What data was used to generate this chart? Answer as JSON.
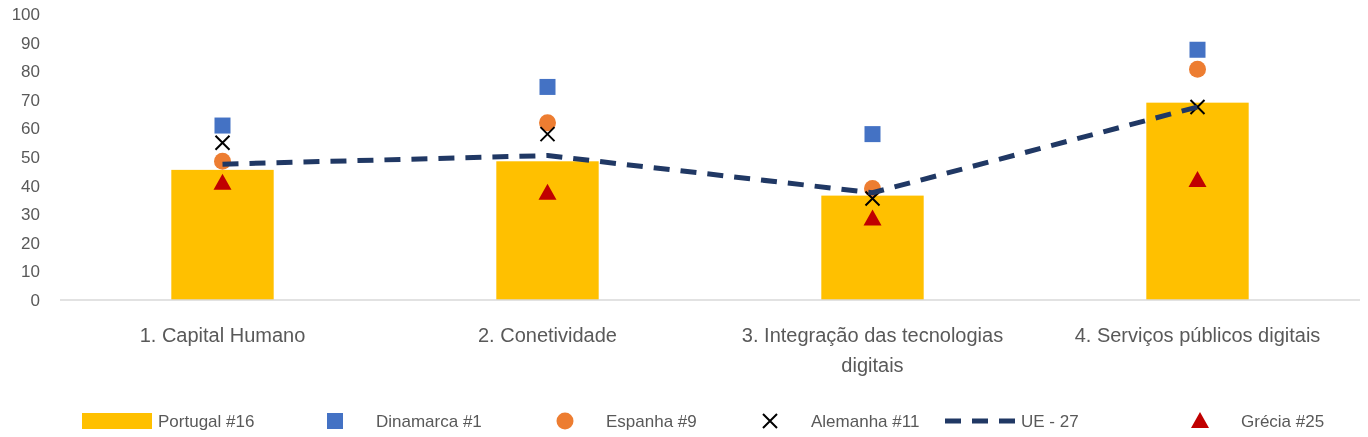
{
  "chart_data": {
    "type": "bar",
    "categories": [
      "1. Capital Humano",
      "2. Conetividade",
      "3. Integração das tecnologias digitais",
      "4. Serviços públicos digitais"
    ],
    "series": [
      {
        "name": "Portugal #16",
        "color": "#ffc000",
        "values": [
          45.5,
          48.5,
          36.5,
          69
        ]
      },
      {
        "name": "Dinamarca #1",
        "type": "scatter",
        "marker": "square",
        "color": "#4472c4",
        "values": [
          61,
          74.5,
          58,
          87.5
        ]
      },
      {
        "name": "Espanha #9",
        "type": "scatter",
        "marker": "circle",
        "color": "#ed7d31",
        "values": [
          48.5,
          62,
          39,
          80.7
        ]
      },
      {
        "name": "Alemanha #11",
        "type": "scatter",
        "marker": "cross",
        "color": "#000000",
        "values": [
          55,
          58,
          35.5,
          67.5
        ]
      },
      {
        "name": "UE - 27",
        "type": "line",
        "line_style": "dashed",
        "marker": "none",
        "color": "#203864",
        "values": [
          47.5,
          50.5,
          37.5,
          67.5
        ]
      },
      {
        "name": "Grécia #25",
        "type": "scatter",
        "marker": "triangle",
        "color": "#c00000",
        "values": [
          41,
          37.5,
          28.5,
          42
        ]
      }
    ],
    "ylim": [
      0,
      100
    ],
    "yticks": [
      0,
      10,
      20,
      30,
      40,
      50,
      60,
      70,
      80,
      90,
      100
    ],
    "grid": false,
    "legend": "bottom"
  }
}
